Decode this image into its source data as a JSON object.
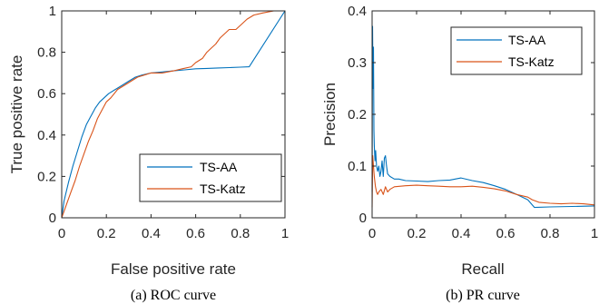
{
  "colors": {
    "ts_aa": "#0072bd",
    "ts_katz": "#d95319",
    "axis": "#262626"
  },
  "captions": {
    "left": "(a) ROC curve",
    "right": "(b) PR curve"
  },
  "chart_data": [
    {
      "type": "line",
      "xlabel": "False positive rate",
      "ylabel": "True positive rate",
      "xlim": [
        0,
        1
      ],
      "ylim": [
        0,
        1
      ],
      "xticks": [
        "0",
        "0.2",
        "0.4",
        "0.6",
        "0.8",
        "1"
      ],
      "yticks": [
        "0",
        "0.2",
        "0.4",
        "0.6",
        "0.8",
        "1"
      ],
      "grid": false,
      "legend": "bottom-right",
      "series": [
        {
          "name": "TS-AA",
          "color": "#0072bd",
          "x": [
            0,
            0.01,
            0.03,
            0.05,
            0.07,
            0.09,
            0.11,
            0.13,
            0.15,
            0.17,
            0.19,
            0.21,
            0.24,
            0.27,
            0.3,
            0.33,
            0.36,
            0.4,
            0.45,
            0.5,
            0.55,
            0.6,
            0.65,
            0.7,
            0.75,
            0.8,
            0.84,
            1.0
          ],
          "y": [
            0,
            0.08,
            0.17,
            0.25,
            0.32,
            0.39,
            0.45,
            0.49,
            0.53,
            0.56,
            0.58,
            0.6,
            0.62,
            0.64,
            0.66,
            0.68,
            0.69,
            0.7,
            0.705,
            0.71,
            0.715,
            0.72,
            0.722,
            0.724,
            0.726,
            0.728,
            0.73,
            1.0
          ]
        },
        {
          "name": "TS-Katz",
          "color": "#d95319",
          "x": [
            0,
            0.02,
            0.04,
            0.06,
            0.08,
            0.1,
            0.12,
            0.14,
            0.16,
            0.18,
            0.2,
            0.22,
            0.25,
            0.28,
            0.31,
            0.34,
            0.37,
            0.4,
            0.45,
            0.5,
            0.54,
            0.58,
            0.6,
            0.63,
            0.65,
            0.67,
            0.69,
            0.71,
            0.73,
            0.75,
            0.78,
            0.8,
            0.83,
            0.86,
            0.9,
            0.95,
            1.0
          ],
          "y": [
            0,
            0.06,
            0.12,
            0.18,
            0.25,
            0.31,
            0.37,
            0.42,
            0.48,
            0.52,
            0.56,
            0.58,
            0.62,
            0.64,
            0.66,
            0.68,
            0.69,
            0.7,
            0.7,
            0.71,
            0.72,
            0.73,
            0.75,
            0.77,
            0.8,
            0.82,
            0.84,
            0.87,
            0.89,
            0.91,
            0.91,
            0.93,
            0.96,
            0.98,
            0.99,
            1.0,
            1.0
          ]
        }
      ]
    },
    {
      "type": "line",
      "xlabel": "Recall",
      "ylabel": "Precision",
      "xlim": [
        0,
        1
      ],
      "ylim": [
        0,
        0.4
      ],
      "xticks": [
        "0",
        "0.2",
        "0.4",
        "0.6",
        "0.8",
        "1"
      ],
      "yticks": [
        "0",
        "0.1",
        "0.2",
        "0.3",
        "0.4"
      ],
      "grid": false,
      "legend": "top-right",
      "series": [
        {
          "name": "TS-AA",
          "color": "#0072bd",
          "x": [
            0,
            0.002,
            0.004,
            0.006,
            0.008,
            0.01,
            0.013,
            0.016,
            0.02,
            0.025,
            0.03,
            0.035,
            0.04,
            0.045,
            0.05,
            0.055,
            0.06,
            0.065,
            0.07,
            0.08,
            0.1,
            0.12,
            0.15,
            0.2,
            0.25,
            0.3,
            0.35,
            0.4,
            0.45,
            0.5,
            0.55,
            0.6,
            0.65,
            0.7,
            0.73,
            0.8,
            0.9,
            1.0
          ],
          "y": [
            0.05,
            0.37,
            0.25,
            0.33,
            0.17,
            0.14,
            0.11,
            0.13,
            0.1,
            0.09,
            0.1,
            0.08,
            0.09,
            0.11,
            0.08,
            0.115,
            0.12,
            0.1,
            0.085,
            0.08,
            0.075,
            0.075,
            0.072,
            0.071,
            0.07,
            0.072,
            0.073,
            0.077,
            0.072,
            0.068,
            0.062,
            0.055,
            0.045,
            0.035,
            0.02,
            0.021,
            0.022,
            0.023
          ]
        },
        {
          "name": "TS-Katz",
          "color": "#d95319",
          "x": [
            0,
            0.003,
            0.006,
            0.01,
            0.015,
            0.02,
            0.025,
            0.03,
            0.04,
            0.05,
            0.06,
            0.07,
            0.08,
            0.1,
            0.15,
            0.2,
            0.25,
            0.3,
            0.35,
            0.4,
            0.45,
            0.5,
            0.55,
            0.6,
            0.65,
            0.7,
            0.72,
            0.75,
            0.8,
            0.85,
            0.9,
            0.95,
            1.0
          ],
          "y": [
            0.02,
            0.12,
            0.1,
            0.08,
            0.06,
            0.05,
            0.045,
            0.05,
            0.055,
            0.045,
            0.06,
            0.05,
            0.055,
            0.06,
            0.062,
            0.063,
            0.062,
            0.061,
            0.06,
            0.06,
            0.061,
            0.059,
            0.056,
            0.052,
            0.045,
            0.04,
            0.035,
            0.03,
            0.028,
            0.027,
            0.028,
            0.027,
            0.025
          ]
        }
      ]
    }
  ]
}
